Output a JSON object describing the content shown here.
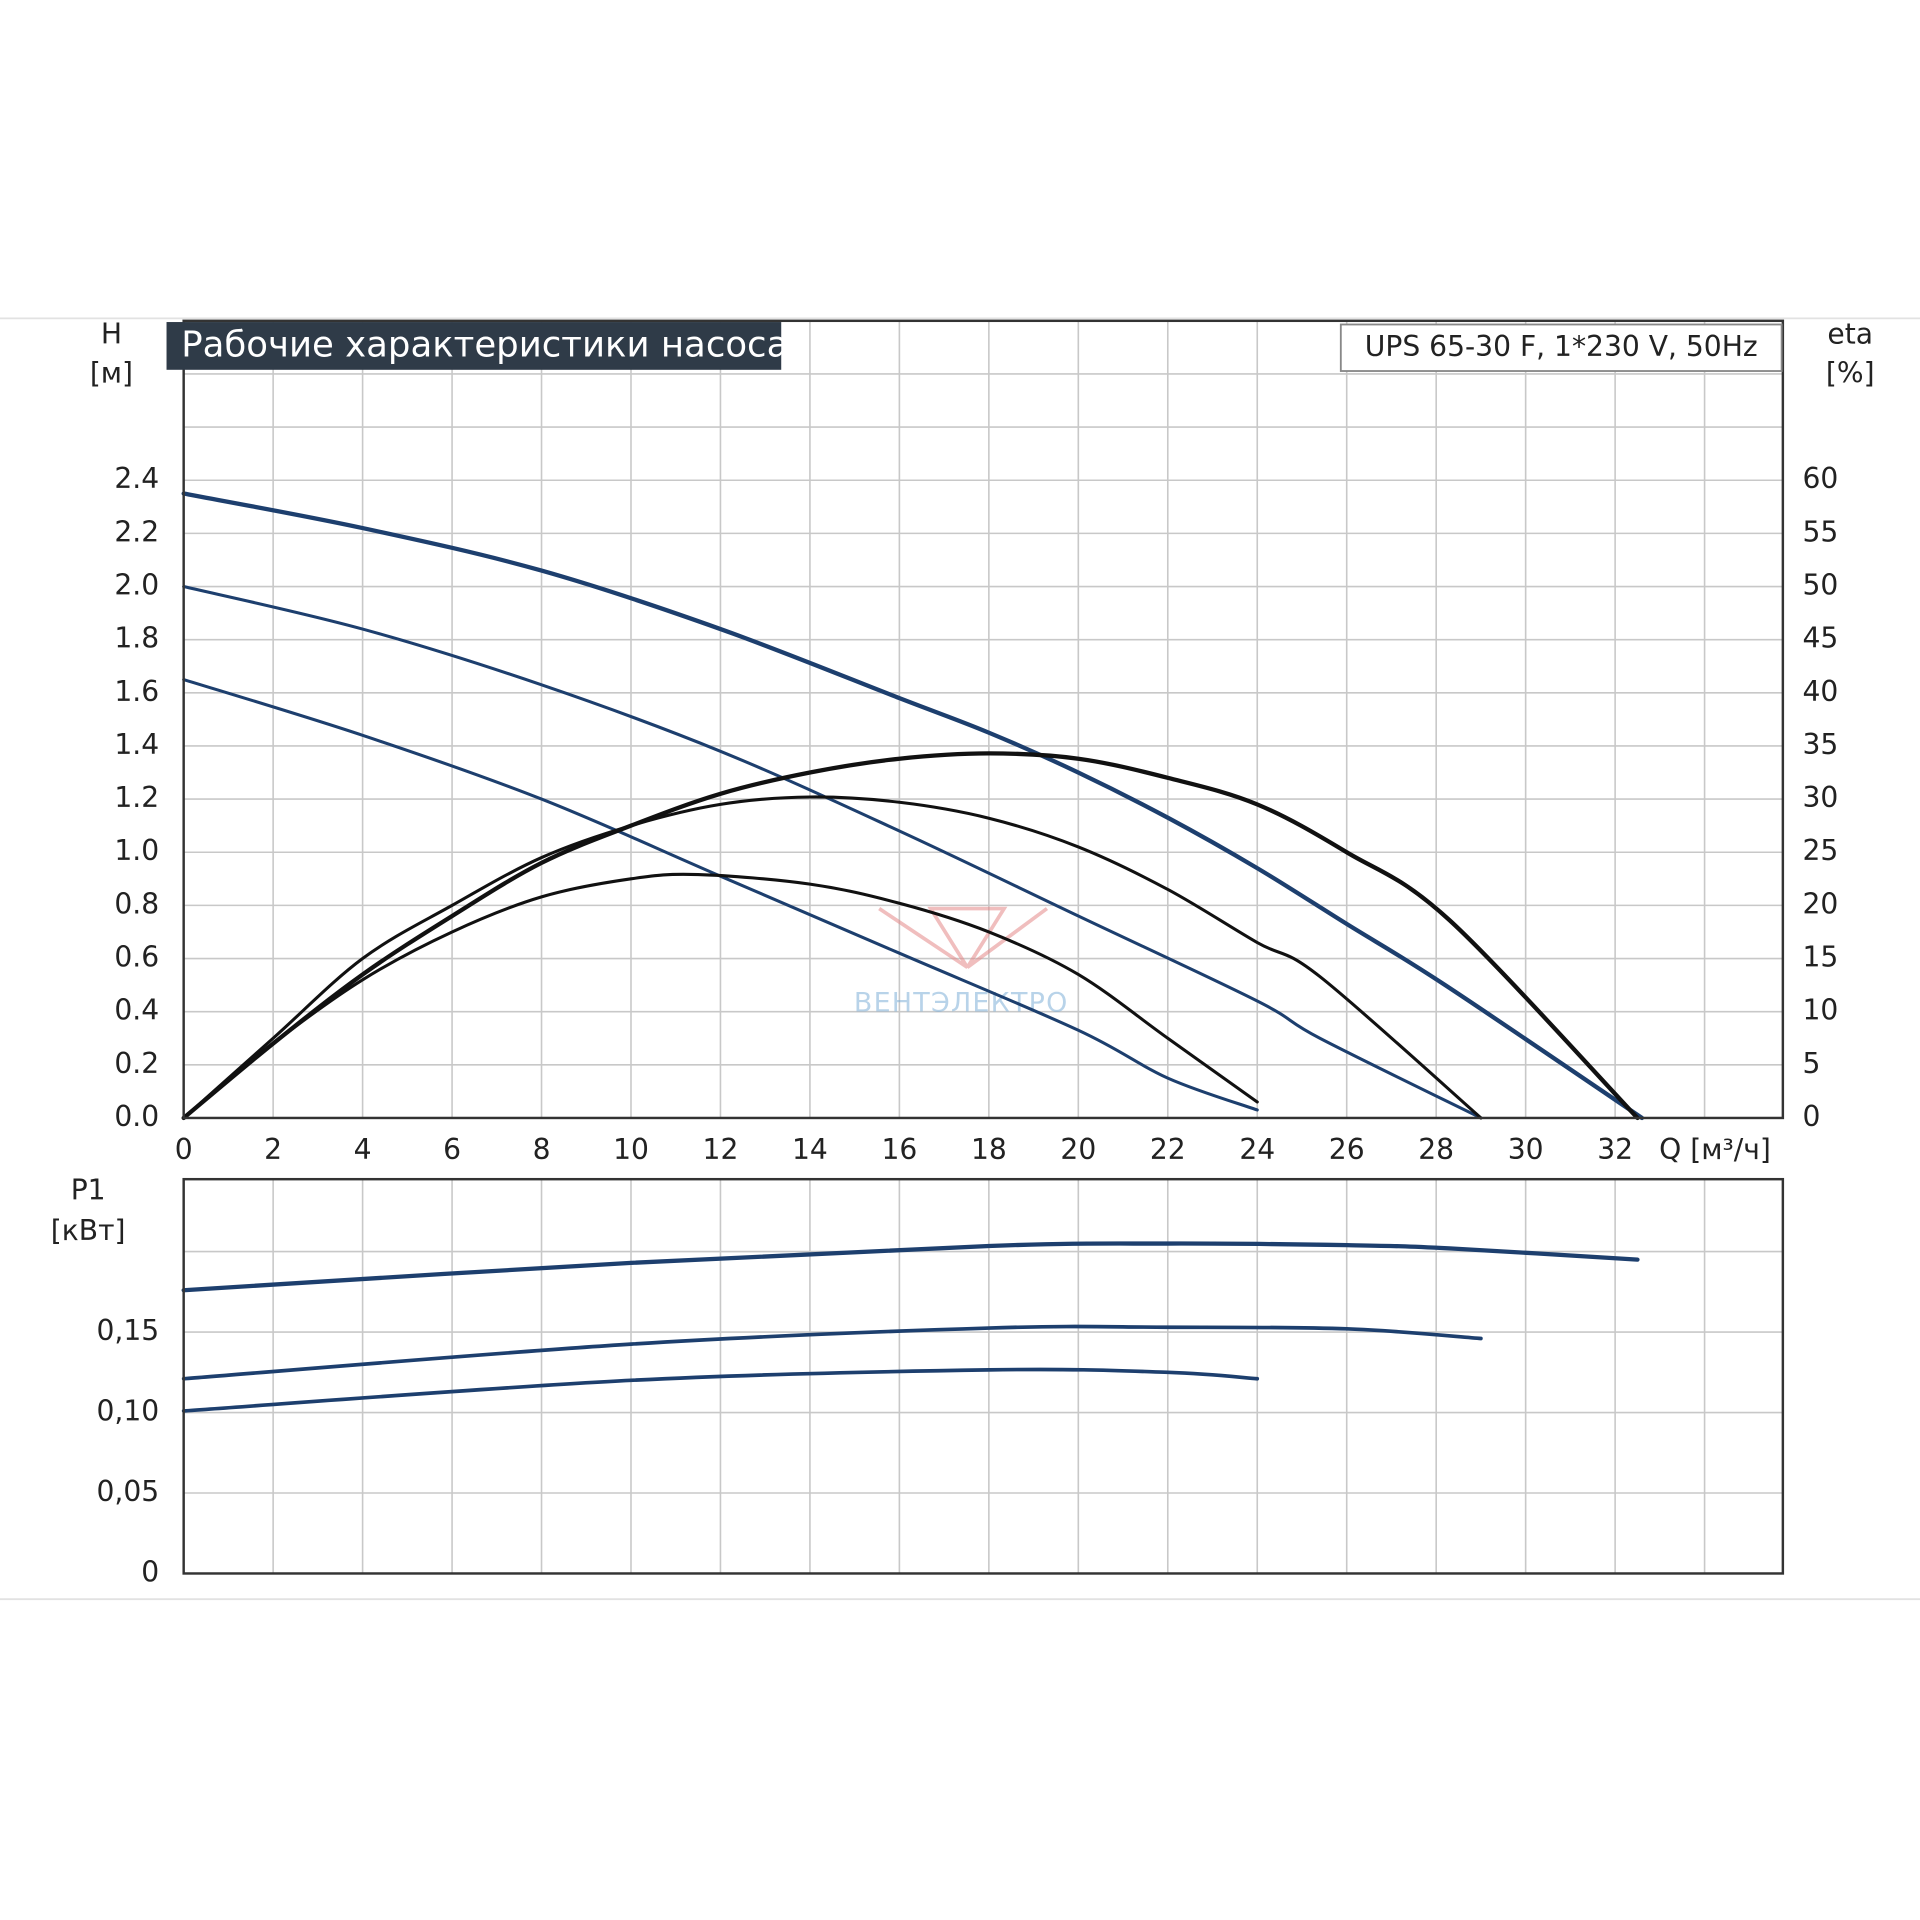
{
  "chart_data": [
    {
      "type": "line",
      "title": "Рабочие характеристики насоса",
      "annotation": "UPS 65-30 F, 1*230 V, 50Hz",
      "ylabel": "H",
      "yunit": "[м]",
      "y2label": "eta",
      "y2unit": "[%]",
      "xlabel": "Q [м³/ч]",
      "watermark": "ВЕНТЭЛЕКТРО",
      "xlim": [
        0,
        35.75
      ],
      "ylim": [
        0,
        3.0
      ],
      "y2lim": [
        0,
        75
      ],
      "xticks": [
        0,
        2,
        4,
        6,
        8,
        10,
        12,
        14,
        16,
        18,
        20,
        22,
        24,
        26,
        28,
        30,
        32
      ],
      "yticks": [
        {
          "value": 0,
          "label": "0.0"
        },
        0.2,
        0.4,
        0.6,
        0.8,
        {
          "value": 1,
          "label": "1.0"
        },
        1.2,
        1.4,
        1.6,
        1.8,
        {
          "value": 2,
          "label": "2.0"
        },
        2.2,
        2.4
      ],
      "y2ticks": [
        0,
        5,
        10,
        15,
        20,
        25,
        30,
        35,
        40,
        45,
        50,
        55,
        60
      ],
      "grid": true,
      "grid_x": [
        0,
        2,
        4,
        6,
        8,
        10,
        12,
        14,
        16,
        18,
        20,
        22,
        24,
        26,
        28,
        30,
        32,
        34
      ],
      "grid_y": [
        0,
        0.2,
        0.4,
        0.6,
        0.8,
        1.0,
        1.2,
        1.4,
        1.6,
        1.8,
        2.0,
        2.2,
        2.4,
        2.6,
        2.8
      ],
      "series": [
        {
          "color": "#1d3f6e",
          "width": 3.5,
          "x": [
            0,
            4,
            8,
            12,
            16,
            18,
            20,
            22,
            24,
            26,
            28.2,
            32.6
          ],
          "values": [
            2.35,
            2.22,
            2.06,
            1.84,
            1.58,
            1.45,
            1.3,
            1.13,
            0.94,
            0.73,
            0.5,
            0
          ]
        },
        {
          "color": "#1d3f6e",
          "width": 2.5,
          "x": [
            0,
            4,
            8,
            12,
            16,
            20,
            24,
            25.4,
            29
          ],
          "values": [
            2.0,
            1.84,
            1.63,
            1.38,
            1.08,
            0.76,
            0.44,
            0.3,
            0
          ]
        },
        {
          "color": "#1d3f6e",
          "width": 2.5,
          "x": [
            0,
            4,
            8,
            12,
            16,
            20,
            22,
            24
          ],
          "values": [
            1.65,
            1.44,
            1.2,
            0.91,
            0.62,
            0.33,
            0.15,
            0.03
          ]
        },
        {
          "color": "#111111",
          "width": 3.5,
          "axis": "y2",
          "x": [
            0,
            2,
            4,
            6,
            8,
            10,
            12,
            14,
            16,
            18,
            20,
            22,
            24,
            26,
            28.3,
            32.5
          ],
          "values": [
            0,
            7,
            13.5,
            19,
            24,
            27.5,
            30.5,
            32.5,
            33.8,
            34.3,
            33.8,
            32,
            29.5,
            25,
            18.6,
            0
          ]
        },
        {
          "color": "#111111",
          "width": 2.5,
          "axis": "y2",
          "x": [
            0,
            2,
            4,
            6,
            8,
            10,
            12,
            14,
            16,
            18,
            20,
            22,
            24,
            25.4,
            29
          ],
          "values": [
            0,
            7.5,
            15,
            20,
            24.5,
            27.5,
            29.5,
            30.2,
            29.7,
            28.2,
            25.5,
            21.5,
            16.5,
            13.3,
            0
          ]
        },
        {
          "color": "#111111",
          "width": 2.5,
          "axis": "y2",
          "x": [
            0,
            2,
            4,
            6,
            8,
            10,
            11.5,
            14,
            16,
            18,
            20,
            22,
            24
          ],
          "values": [
            0,
            7,
            13,
            17.5,
            20.8,
            22.5,
            22.9,
            22,
            20.2,
            17.5,
            13.5,
            7.5,
            1.5
          ]
        }
      ]
    },
    {
      "type": "line",
      "ylabel": "P1",
      "yunit": "[кВт]",
      "xlim": [
        0,
        35.75
      ],
      "ylim": [
        0,
        0.245
      ],
      "yticks": [
        0,
        {
          "value": 0.05,
          "label": "0,05"
        },
        {
          "value": 0.1,
          "label": "0,10"
        },
        {
          "value": 0.15,
          "label": "0,15"
        }
      ],
      "grid": true,
      "grid_x": [
        0,
        2,
        4,
        6,
        8,
        10,
        12,
        14,
        16,
        18,
        20,
        22,
        24,
        26,
        28,
        30,
        32,
        34
      ],
      "grid_y": [
        0,
        0.05,
        0.1,
        0.15,
        0.2
      ],
      "series": [
        {
          "color": "#1d3f6e",
          "width": 3.5,
          "x": [
            0,
            10,
            18,
            22,
            26,
            28.3,
            32.5
          ],
          "values": [
            0.176,
            0.193,
            0.2035,
            0.205,
            0.204,
            0.202,
            0.195
          ]
        },
        {
          "color": "#1d3f6e",
          "width": 3,
          "x": [
            0,
            10,
            18,
            22,
            26,
            29
          ],
          "values": [
            0.121,
            0.1425,
            0.1525,
            0.153,
            0.152,
            0.146
          ]
        },
        {
          "color": "#1d3f6e",
          "width": 3,
          "x": [
            0,
            10,
            18,
            22,
            24
          ],
          "values": [
            0.101,
            0.12,
            0.1265,
            0.125,
            0.121
          ]
        }
      ]
    }
  ]
}
